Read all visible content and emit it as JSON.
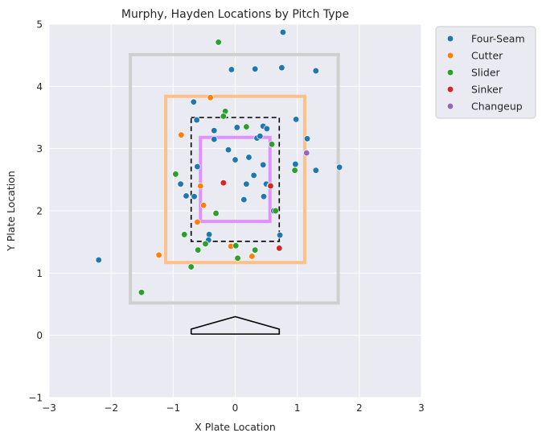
{
  "chart_data": {
    "type": "scatter",
    "title": "Murphy, Hayden Locations by Pitch Type",
    "xlabel": "X Plate Location",
    "ylabel": "Y Plate Location",
    "xlim": [
      -3,
      3
    ],
    "ylim": [
      -1,
      5
    ],
    "xticks": [
      "−3",
      "−2",
      "−1",
      "0",
      "1",
      "2",
      "3"
    ],
    "yticks": [
      "−1",
      "0",
      "1",
      "2",
      "3",
      "4",
      "5"
    ],
    "grid": true,
    "legend_position": "outside-top-right",
    "series": [
      {
        "name": "Four-Seam",
        "color": "#1f77b4",
        "points": [
          [
            0.77,
            4.87
          ],
          [
            -0.06,
            4.27
          ],
          [
            0.32,
            4.28
          ],
          [
            0.75,
            4.3
          ],
          [
            1.3,
            4.25
          ],
          [
            -0.67,
            3.75
          ],
          [
            -0.62,
            3.46
          ],
          [
            0.98,
            3.47
          ],
          [
            0.03,
            3.34
          ],
          [
            0.45,
            3.36
          ],
          [
            0.51,
            3.32
          ],
          [
            -0.34,
            3.29
          ],
          [
            -0.34,
            3.15
          ],
          [
            1.16,
            3.16
          ],
          [
            0.35,
            3.17
          ],
          [
            0.4,
            3.2
          ],
          [
            -0.11,
            2.98
          ],
          [
            0.0,
            2.82
          ],
          [
            0.22,
            2.86
          ],
          [
            0.45,
            2.74
          ],
          [
            -0.61,
            2.71
          ],
          [
            0.97,
            2.75
          ],
          [
            1.3,
            2.65
          ],
          [
            1.68,
            2.7
          ],
          [
            0.3,
            2.57
          ],
          [
            -0.88,
            2.43
          ],
          [
            0.18,
            2.43
          ],
          [
            0.5,
            2.43
          ],
          [
            0.56,
            2.4
          ],
          [
            -0.79,
            2.24
          ],
          [
            -0.66,
            2.23
          ],
          [
            0.46,
            2.23
          ],
          [
            0.14,
            2.18
          ],
          [
            0.62,
            2.0
          ],
          [
            0.72,
            1.61
          ],
          [
            -0.42,
            1.62
          ],
          [
            -0.43,
            1.53
          ],
          [
            -2.2,
            1.21
          ]
        ]
      },
      {
        "name": "Cutter",
        "color": "#ff7f0e",
        "points": [
          [
            -0.4,
            3.82
          ],
          [
            -0.87,
            3.22
          ],
          [
            -0.56,
            2.4
          ],
          [
            -0.51,
            2.09
          ],
          [
            -0.61,
            1.82
          ],
          [
            -0.07,
            1.43
          ],
          [
            0.27,
            1.27
          ],
          [
            -1.23,
            1.29
          ]
        ]
      },
      {
        "name": "Slider",
        "color": "#2ca02c",
        "points": [
          [
            -0.27,
            4.71
          ],
          [
            -0.16,
            3.6
          ],
          [
            -0.19,
            3.52
          ],
          [
            0.18,
            3.35
          ],
          [
            0.59,
            3.07
          ],
          [
            -0.96,
            2.59
          ],
          [
            0.96,
            2.65
          ],
          [
            -0.31,
            1.96
          ],
          [
            0.65,
            2.0
          ],
          [
            -0.82,
            1.62
          ],
          [
            -0.48,
            1.47
          ],
          [
            0.01,
            1.44
          ],
          [
            -0.6,
            1.37
          ],
          [
            0.32,
            1.37
          ],
          [
            0.04,
            1.24
          ],
          [
            -0.71,
            1.1
          ],
          [
            -1.51,
            0.69
          ]
        ]
      },
      {
        "name": "Sinker",
        "color": "#d62728",
        "points": [
          [
            -0.19,
            2.45
          ],
          [
            0.71,
            1.4
          ],
          [
            0.57,
            2.4
          ]
        ]
      },
      {
        "name": "Changeup",
        "color": "#9467bd",
        "points": [
          [
            1.15,
            2.93
          ]
        ]
      }
    ],
    "reference_boxes": [
      {
        "kind": "outer-zone",
        "x": [
          -1.69,
          1.66
        ],
        "y": [
          0.52,
          4.51
        ],
        "color": "#cfcfcf",
        "style": "solid"
      },
      {
        "kind": "middle-zone",
        "x": [
          -1.12,
          1.12
        ],
        "y": [
          1.17,
          3.84
        ],
        "color": "#fdc08a",
        "style": "solid"
      },
      {
        "kind": "strike-zone",
        "x": [
          -0.71,
          0.71
        ],
        "y": [
          1.51,
          3.5
        ],
        "color": "#000000",
        "style": "dashed"
      },
      {
        "kind": "inner-zone",
        "x": [
          -0.56,
          0.56
        ],
        "y": [
          1.83,
          3.18
        ],
        "color": "#e191ff",
        "style": "solid"
      }
    ],
    "home_plate": [
      [
        -0.71,
        0.02
      ],
      [
        -0.71,
        0.1
      ],
      [
        0.0,
        0.3
      ],
      [
        0.71,
        0.1
      ],
      [
        0.71,
        0.02
      ],
      [
        -0.71,
        0.02
      ]
    ]
  }
}
